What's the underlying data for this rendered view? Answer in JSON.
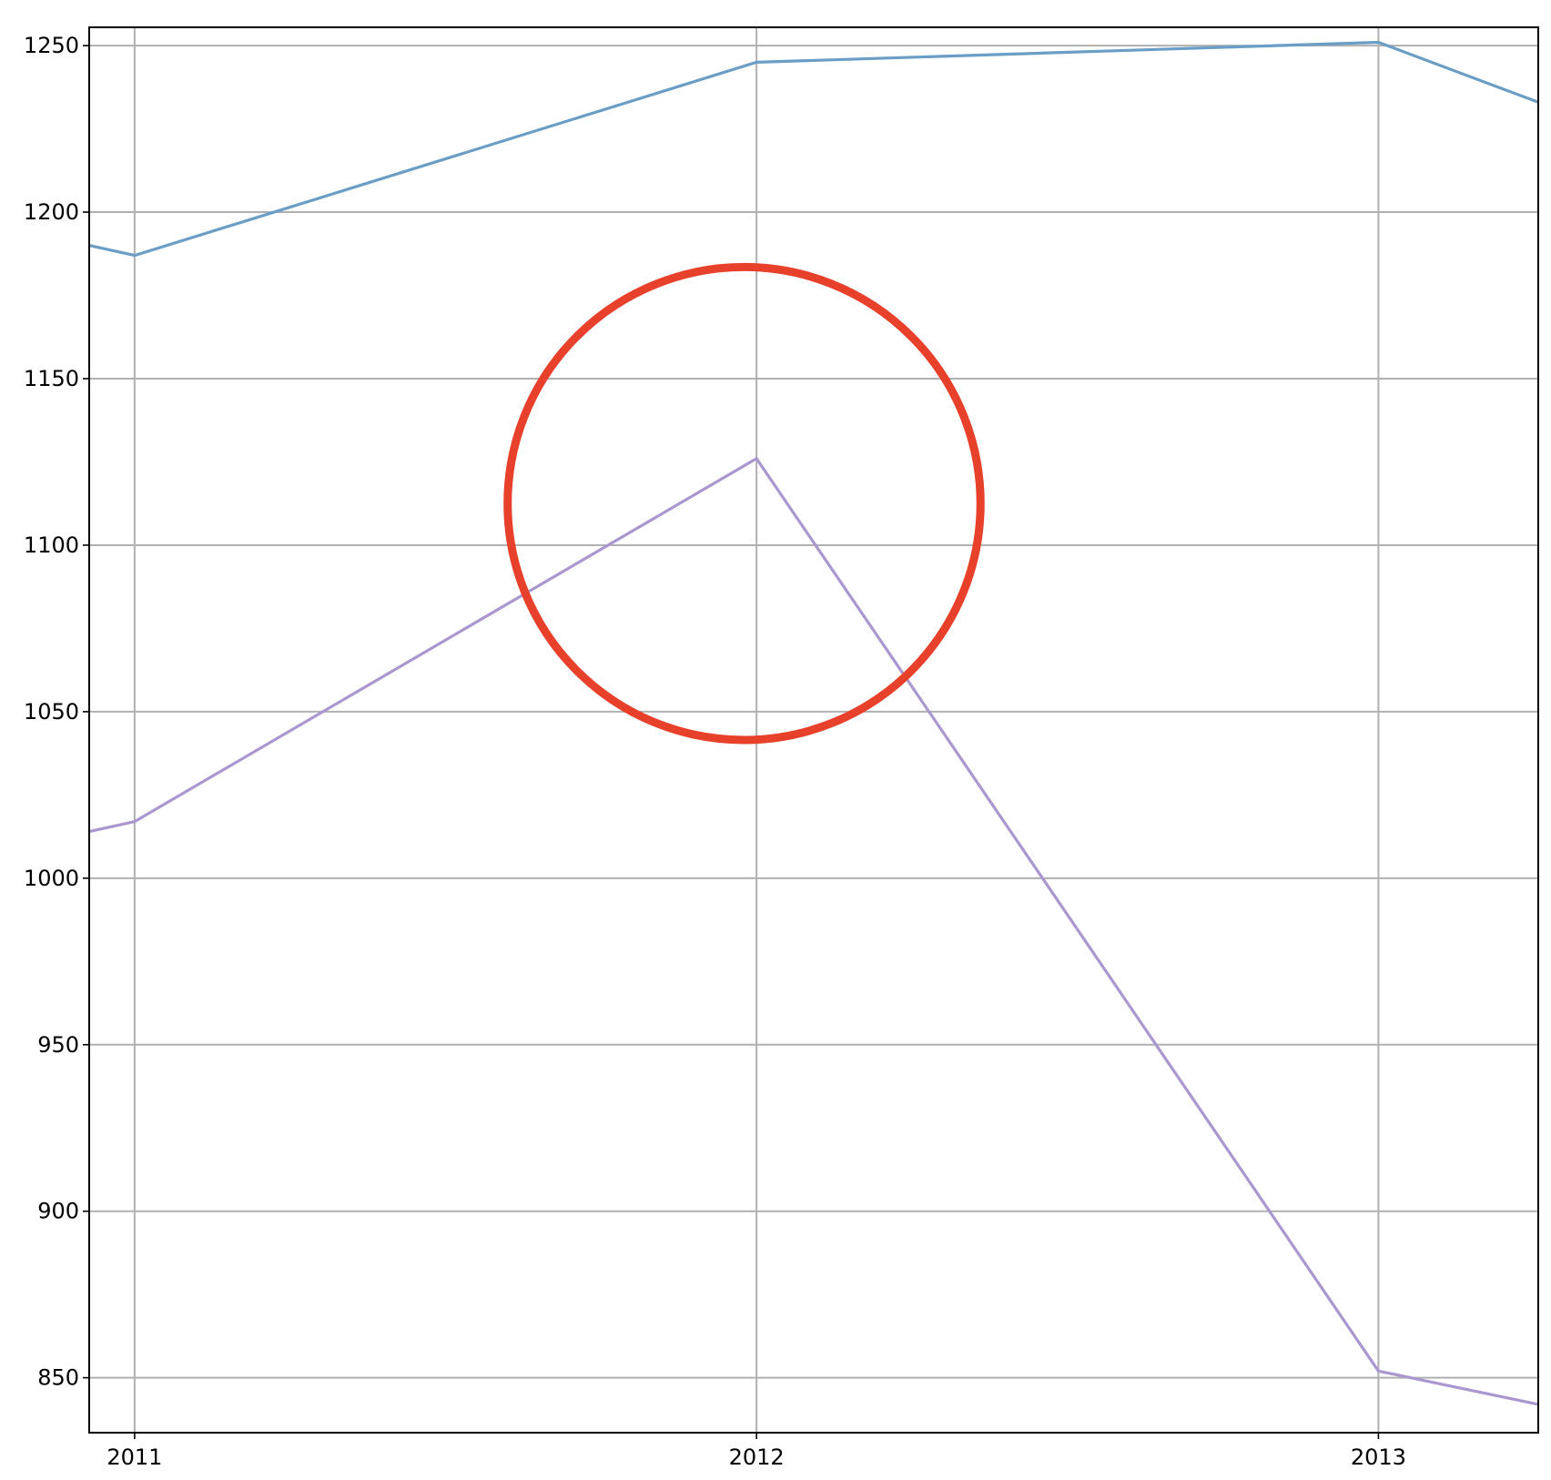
{
  "chart_data": {
    "type": "line",
    "title": "",
    "xlabel": "",
    "ylabel": "",
    "x_ticks": [
      "2011",
      "2012",
      "2013"
    ],
    "xlim": [
      2010.927,
      2013.257
    ],
    "ylim": [
      833.5,
      1255.5
    ],
    "y_ticks": [
      850,
      900,
      950,
      1000,
      1050,
      1100,
      1150,
      1200,
      1250
    ],
    "grid": true,
    "legend": "none",
    "series": [
      {
        "color": "#6a9ec6",
        "points": [
          {
            "x": 2010.927,
            "y": 1190
          },
          {
            "x": 2011.0,
            "y": 1187
          },
          {
            "x": 2012.0,
            "y": 1245
          },
          {
            "x": 2013.0,
            "y": 1251
          },
          {
            "x": 2013.257,
            "y": 1233
          }
        ]
      },
      {
        "color": "#ab97cf",
        "points": [
          {
            "x": 2010.927,
            "y": 1014
          },
          {
            "x": 2011.0,
            "y": 1017
          },
          {
            "x": 2012.0,
            "y": 1126
          },
          {
            "x": 2013.0,
            "y": 852
          },
          {
            "x": 2013.257,
            "y": 842
          }
        ]
      }
    ],
    "annotation": {
      "shape": "circle",
      "color": "#e8412b",
      "center": {
        "x": 2011.98,
        "y": 1112.5
      },
      "radius_y": 71
    }
  }
}
